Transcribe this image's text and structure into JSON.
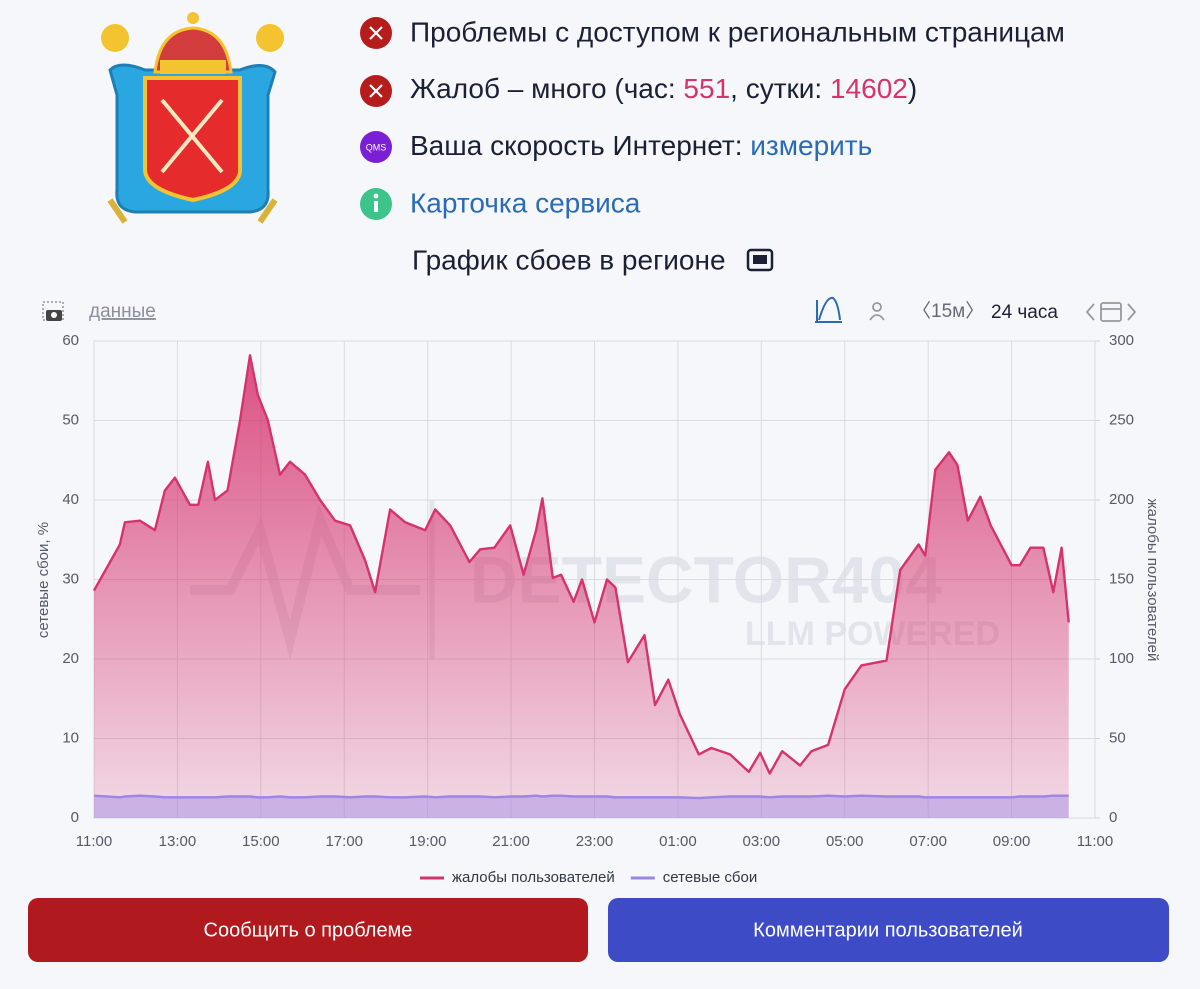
{
  "status": {
    "access": "Проблемы с доступом к региональным страницам",
    "complaints": {
      "prefix": "Жалоб – много (час: ",
      "hour": 551,
      "middle": ", сутки: ",
      "day": 14602,
      "suffix": ")"
    },
    "speed": {
      "icon": "QMS",
      "label": "Ваша скорость Интернет: ",
      "link": "измерить"
    },
    "card": "Карточка сервиса"
  },
  "chart_heading": "График сбоев в регионе",
  "toolbar": {
    "data": "данные",
    "interval": "〈15м〉",
    "period": "24 часа"
  },
  "watermark": [
    "DETECTOR404",
    "LLM POWERED"
  ],
  "chart_data": {
    "type": "line",
    "area": true,
    "grid": true,
    "ylabel": "сетевые сбои, %",
    "y2label": "жалобы пользователей",
    "x": [
      0,
      0.62,
      0.74,
      1.1,
      1.46,
      1.7,
      1.94,
      2.3,
      2.5,
      2.73,
      2.9,
      3.2,
      3.5,
      3.74,
      3.93,
      4.17,
      4.46,
      4.7,
      5.06,
      5.42,
      5.78,
      6.14,
      6.5,
      6.74,
      7.1,
      7.46,
      7.94,
      8.18,
      8.54,
      9.0,
      9.26,
      9.6,
      9.98,
      10.3,
      10.6,
      10.75,
      11.0,
      11.2,
      11.5,
      11.7,
      12.0,
      12.3,
      12.5,
      12.8,
      13.2,
      13.45,
      13.77,
      14.05,
      14.5,
      14.8,
      15.25,
      15.7,
      15.97,
      16.2,
      16.5,
      16.93,
      17.2,
      17.6,
      18.0,
      18.4,
      19.0,
      19.33,
      19.77,
      19.93,
      20.17,
      20.5,
      20.7,
      20.95,
      21.25,
      21.5,
      22.0,
      22.2,
      22.45,
      22.76,
      23.0,
      23.2,
      23.37
    ],
    "xlim": [
      0,
      24
    ],
    "xticks": [
      {
        "value": 0,
        "label": "11:00"
      },
      {
        "value": 2,
        "label": "13:00"
      },
      {
        "value": 4,
        "label": "15:00"
      },
      {
        "value": 6,
        "label": "17:00"
      },
      {
        "value": 8,
        "label": "19:00"
      },
      {
        "value": 10,
        "label": "21:00"
      },
      {
        "value": 12,
        "label": "23:00"
      },
      {
        "value": 14,
        "label": "01:00"
      },
      {
        "value": 16,
        "label": "03:00"
      },
      {
        "value": 18,
        "label": "05:00"
      },
      {
        "value": 20,
        "label": "07:00"
      },
      {
        "value": 22,
        "label": "09:00"
      },
      {
        "value": 24,
        "label": "11:00"
      }
    ],
    "ylim": [
      0,
      60
    ],
    "yticks": [
      0,
      10,
      20,
      30,
      40,
      50,
      60
    ],
    "y2lim": [
      0,
      300
    ],
    "y2ticks": [
      0,
      50,
      100,
      150,
      200,
      250,
      300
    ],
    "series": [
      {
        "name": "жалобы пользователей",
        "color": "#d6336c",
        "axis": "y2",
        "values": [
          143,
          172,
          186,
          187,
          181,
          206,
          214,
          197,
          197,
          224,
          200,
          206,
          250,
          291,
          266,
          250,
          216,
          224,
          216,
          200,
          187,
          184,
          162,
          142,
          194,
          186,
          181,
          194,
          184,
          161,
          169,
          170,
          184,
          153,
          181,
          201,
          151,
          153,
          136,
          150,
          123,
          150,
          145,
          98,
          115,
          71,
          87,
          65,
          40,
          44,
          40,
          29,
          41,
          28,
          42,
          33,
          42,
          46,
          81,
          96,
          99,
          156,
          172,
          165,
          219,
          230,
          222,
          187,
          202,
          184,
          159,
          159,
          170,
          170,
          142,
          170,
          123
        ]
      },
      {
        "name": "сетевые сбои",
        "color": "#9d85e6",
        "values": [
          2.8,
          2.6,
          2.7,
          2.8,
          2.7,
          2.6,
          2.6,
          2.6,
          2.6,
          2.6,
          2.6,
          2.7,
          2.7,
          2.7,
          2.6,
          2.6,
          2.7,
          2.6,
          2.6,
          2.7,
          2.7,
          2.6,
          2.7,
          2.7,
          2.6,
          2.6,
          2.7,
          2.6,
          2.7,
          2.7,
          2.7,
          2.6,
          2.7,
          2.7,
          2.8,
          2.7,
          2.8,
          2.8,
          2.7,
          2.7,
          2.7,
          2.7,
          2.6,
          2.6,
          2.6,
          2.6,
          2.6,
          2.6,
          2.5,
          2.6,
          2.7,
          2.7,
          2.7,
          2.6,
          2.7,
          2.7,
          2.7,
          2.8,
          2.7,
          2.8,
          2.7,
          2.7,
          2.7,
          2.6,
          2.6,
          2.6,
          2.6,
          2.6,
          2.6,
          2.6,
          2.6,
          2.7,
          2.7,
          2.7,
          2.8,
          2.8,
          2.8
        ]
      }
    ]
  },
  "buttons": {
    "report": "Сообщить о проблеме",
    "comments": "Комментарии пользователей"
  }
}
